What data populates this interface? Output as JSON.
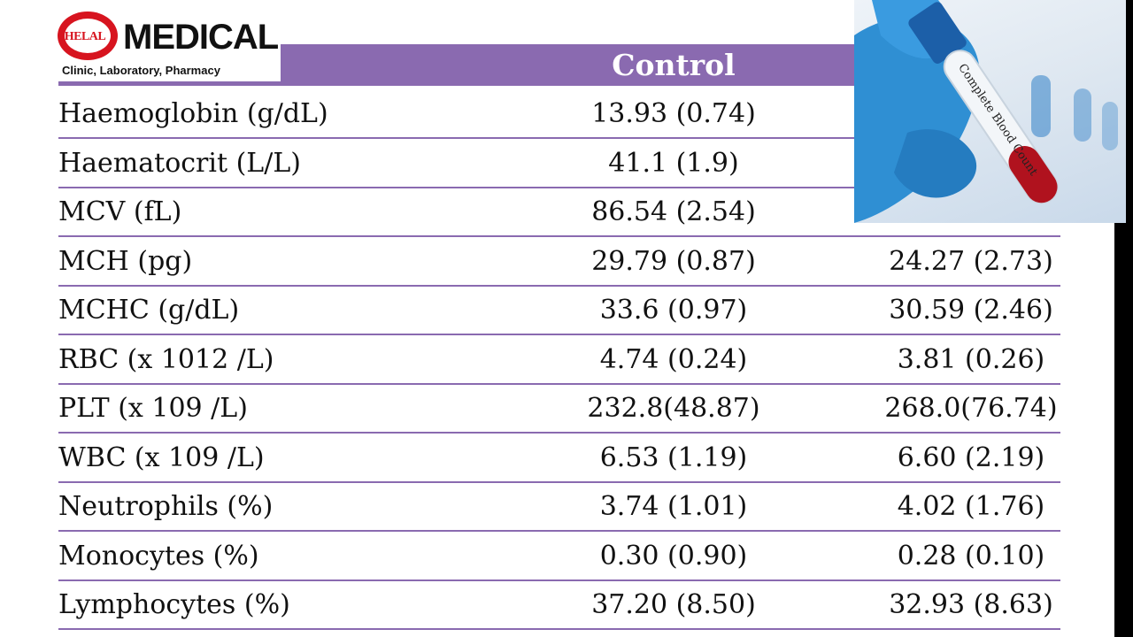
{
  "logo": {
    "brand": "HELAL",
    "title": "MEDICAL",
    "subtitle": "Clinic, Laboratory, Pharmacy"
  },
  "table": {
    "header_control": "Control",
    "rows": [
      {
        "label": "Haemoglobin (g/dL)",
        "control": "13.93 (0.74)",
        "other": ""
      },
      {
        "label": "Haematocrit (L/L)",
        "control": "41.1 (1.9)",
        "other": ""
      },
      {
        "label": "MCV (fL)",
        "control": "86.54 (2.54)",
        "other": ""
      },
      {
        "label": "MCH (pg)",
        "control": "29.79 (0.87)",
        "other": "24.27 (2.73)"
      },
      {
        "label": "MCHC (g/dL)",
        "control": "33.6 (0.97)",
        "other": "30.59 (2.46)"
      },
      {
        "label": "RBC (x 1012 /L)",
        "control": "4.74 (0.24)",
        "other": "3.81 (0.26)"
      },
      {
        "label": "PLT (x 109 /L)",
        "control": "232.8(48.87)",
        "other": "268.0(76.74)"
      },
      {
        "label": "WBC (x 109 /L)",
        "control": "6.53 (1.19)",
        "other": "6.60 (2.19)"
      },
      {
        "label": "Neutrophils (%)",
        "control": "3.74 (1.01)",
        "other": "4.02 (1.76)"
      },
      {
        "label": "Monocytes (%)",
        "control": "0.30 (0.90)",
        "other": "0.28 (0.10)"
      },
      {
        "label": "Lymphocytes (%)",
        "control": "37.20 (8.50)",
        "other": "32.93 (8.63)"
      }
    ]
  },
  "photo": {
    "tube_label": "Complete Blood Count"
  },
  "colors": {
    "header": "#8a6ab0",
    "brand_red": "#d7141f",
    "glove_blue": "#2f8fd3"
  }
}
